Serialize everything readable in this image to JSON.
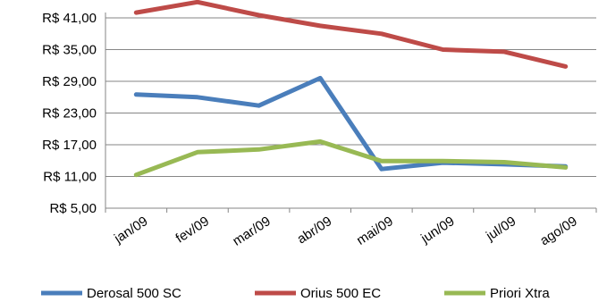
{
  "chart_data": {
    "type": "line",
    "categories": [
      "jan/09",
      "fev/09",
      "mar/09",
      "abr/09",
      "mai/09",
      "jun/09",
      "jul/09",
      "ago/09"
    ],
    "series": [
      {
        "name": "Derosal 500 SC",
        "color": "#4a7ebb",
        "values": [
          26.5,
          26.0,
          24.4,
          29.6,
          12.4,
          13.6,
          13.3,
          12.9
        ]
      },
      {
        "name": "Orius 500 EC",
        "color": "#be4b48",
        "values": [
          42.0,
          44.0,
          41.5,
          39.5,
          38.0,
          35.0,
          34.6,
          31.8
        ]
      },
      {
        "name": "Priori Xtra",
        "color": "#98b954",
        "values": [
          11.3,
          15.6,
          16.1,
          17.6,
          13.9,
          13.9,
          13.7,
          12.7
        ]
      }
    ],
    "y_ticks": [
      5,
      11,
      17,
      23,
      29,
      35,
      41
    ],
    "y_tick_labels": [
      "R$ 5,00",
      "R$ 11,00",
      "R$ 17,00",
      "R$ 23,00",
      "R$ 29,00",
      "R$ 35,00",
      "R$ 41,00"
    ],
    "ylim": [
      5,
      44
    ],
    "grid": true,
    "legend_position": "bottom",
    "title": "",
    "xlabel": "",
    "ylabel": "",
    "colors": {
      "gridline": "#868686",
      "axis": "#868686"
    }
  }
}
